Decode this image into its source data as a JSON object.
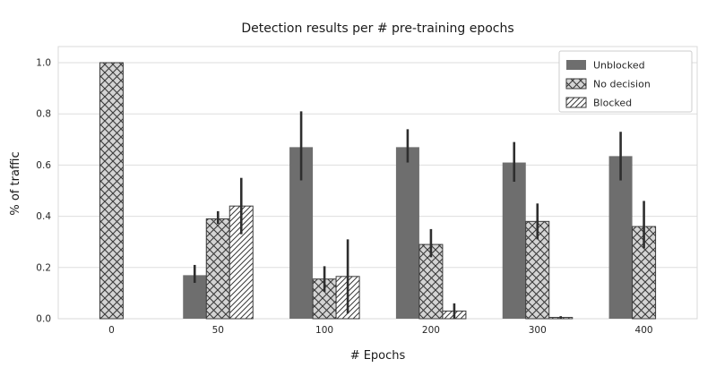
{
  "figure": {
    "background": "#ffffff"
  },
  "chart_data": {
    "type": "bar",
    "title": "Detection results per # pre-training epochs",
    "xlabel": "# Epochs",
    "ylabel": "% of traffic",
    "categories": [
      "0",
      "50",
      "100",
      "200",
      "300",
      "400"
    ],
    "ylim": [
      0.0,
      1.0
    ],
    "yticks": [
      "0.0",
      "0.2",
      "0.4",
      "0.6",
      "0.8",
      "1.0"
    ],
    "grid": true,
    "legend_position": "upper right",
    "series": [
      {
        "name": "Unblocked",
        "values": [
          0,
          0.17,
          0.67,
          0.67,
          0.61,
          0.635
        ],
        "err_low": [
          0,
          0.03,
          0.13,
          0.06,
          0.075,
          0.095
        ],
        "err_high": [
          0,
          0.04,
          0.14,
          0.07,
          0.08,
          0.095
        ],
        "fill": "#6e6e6e",
        "hatch": "none"
      },
      {
        "name": "No decision",
        "values": [
          1.0,
          0.39,
          0.155,
          0.29,
          0.38,
          0.36
        ],
        "err_low": [
          0,
          0.02,
          0.05,
          0.05,
          0.07,
          0.085
        ],
        "err_high": [
          0,
          0.03,
          0.05,
          0.06,
          0.07,
          0.1
        ],
        "fill": "#d4d4d4",
        "hatch": "cross"
      },
      {
        "name": "Blocked",
        "values": [
          0,
          0.44,
          0.165,
          0.03,
          0.005,
          0
        ],
        "err_low": [
          0,
          0.11,
          0.145,
          0.03,
          0.005,
          0
        ],
        "err_high": [
          0,
          0.11,
          0.145,
          0.03,
          0.005,
          0
        ],
        "fill": "#ffffff",
        "hatch": "diag"
      }
    ],
    "hatch_color": "#3a3a3a",
    "errorbar_color": "#2e2e2e",
    "gridline_color": "#dedede",
    "frame_color": "#d9d9d9",
    "text_color": "#262626"
  }
}
